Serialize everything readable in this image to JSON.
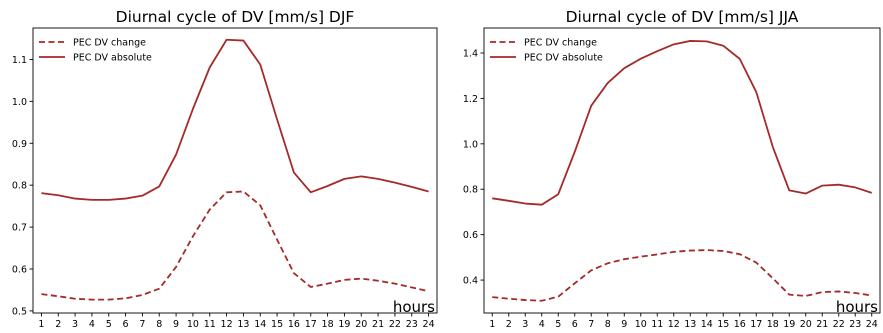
{
  "chart_data": [
    {
      "type": "line",
      "title": "Diurnal cycle of DV [mm/s] DJF",
      "xlabel": "hours",
      "ylabel": "",
      "x": [
        1,
        2,
        3,
        4,
        5,
        6,
        7,
        8,
        9,
        10,
        11,
        12,
        13,
        14,
        15,
        16,
        17,
        18,
        19,
        20,
        21,
        22,
        23,
        24
      ],
      "ylim": [
        0.495,
        1.175
      ],
      "yticks": [
        0.5,
        0.6,
        0.7,
        0.8,
        0.9,
        1.0,
        1.1
      ],
      "ytick_labels": [
        "0.5",
        "0.6",
        "0.7",
        "0.8",
        "0.9",
        "1.0",
        "1.1"
      ],
      "grid": false,
      "legend": "top-left",
      "series": [
        {
          "name": "PEC DV change",
          "style": "dashed",
          "color": "#a52a2a",
          "values": [
            0.54,
            0.535,
            0.529,
            0.527,
            0.527,
            0.53,
            0.538,
            0.553,
            0.605,
            0.678,
            0.742,
            0.783,
            0.785,
            0.752,
            0.67,
            0.59,
            0.557,
            0.565,
            0.574,
            0.577,
            0.572,
            0.565,
            0.556,
            0.547
          ]
        },
        {
          "name": "PEC DV absolute",
          "style": "solid",
          "color": "#a52a2a",
          "values": [
            0.781,
            0.776,
            0.768,
            0.765,
            0.765,
            0.768,
            0.775,
            0.797,
            0.873,
            0.982,
            1.081,
            1.147,
            1.145,
            1.088,
            0.957,
            0.83,
            0.783,
            0.798,
            0.815,
            0.821,
            0.815,
            0.806,
            0.796,
            0.785
          ]
        }
      ]
    },
    {
      "type": "line",
      "title": "Diurnal cycle of DV [mm/s] JJA",
      "xlabel": "hours",
      "ylabel": "",
      "x": [
        1,
        2,
        3,
        4,
        5,
        6,
        7,
        8,
        9,
        10,
        11,
        12,
        13,
        14,
        15,
        16,
        17,
        18,
        19,
        20,
        21,
        22,
        23,
        24
      ],
      "ylim": [
        0.255,
        1.51
      ],
      "yticks": [
        0.4,
        0.6,
        0.8,
        1.0,
        1.2,
        1.4
      ],
      "ytick_labels": [
        "0.4",
        "0.6",
        "0.8",
        "1.0",
        "1.2",
        "1.4"
      ],
      "grid": false,
      "legend": "top-left",
      "series": [
        {
          "name": "PEC DV change",
          "style": "dashed",
          "color": "#a52a2a",
          "values": [
            0.325,
            0.318,
            0.312,
            0.309,
            0.327,
            0.386,
            0.443,
            0.474,
            0.492,
            0.503,
            0.513,
            0.524,
            0.53,
            0.532,
            0.528,
            0.514,
            0.477,
            0.408,
            0.336,
            0.33,
            0.347,
            0.35,
            0.343,
            0.332
          ]
        },
        {
          "name": "PEC DV absolute",
          "style": "solid",
          "color": "#a52a2a",
          "values": [
            0.76,
            0.749,
            0.737,
            0.732,
            0.778,
            0.965,
            1.168,
            1.268,
            1.333,
            1.375,
            1.408,
            1.438,
            1.453,
            1.451,
            1.432,
            1.374,
            1.228,
            0.987,
            0.795,
            0.781,
            0.816,
            0.82,
            0.808,
            0.784
          ]
        }
      ]
    }
  ]
}
